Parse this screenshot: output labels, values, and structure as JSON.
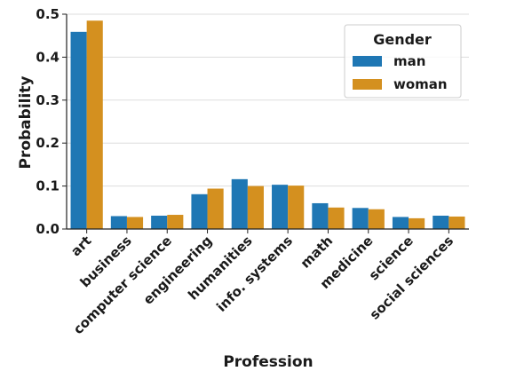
{
  "chart_data": {
    "type": "bar",
    "xlabel": "Profession",
    "ylabel": "Probability",
    "ylim": [
      0,
      0.5
    ],
    "yticks": [
      "0.0",
      "0.1",
      "0.2",
      "0.3",
      "0.4",
      "0.5"
    ],
    "grid": "horizontal",
    "categories": [
      "art",
      "business",
      "computer science",
      "engineering",
      "humanities",
      "info. systems",
      "math",
      "medicine",
      "science",
      "social sciences"
    ],
    "series": [
      {
        "name": "man",
        "color": "#1f77b4",
        "values": [
          0.459,
          0.03,
          0.031,
          0.081,
          0.116,
          0.103,
          0.06,
          0.049,
          0.028,
          0.031
        ]
      },
      {
        "name": "woman",
        "color": "#d4901f",
        "values": [
          0.485,
          0.028,
          0.033,
          0.094,
          0.1,
          0.101,
          0.05,
          0.046,
          0.025,
          0.029
        ]
      }
    ],
    "legend": {
      "title": "Gender",
      "placement": "top-right"
    }
  }
}
